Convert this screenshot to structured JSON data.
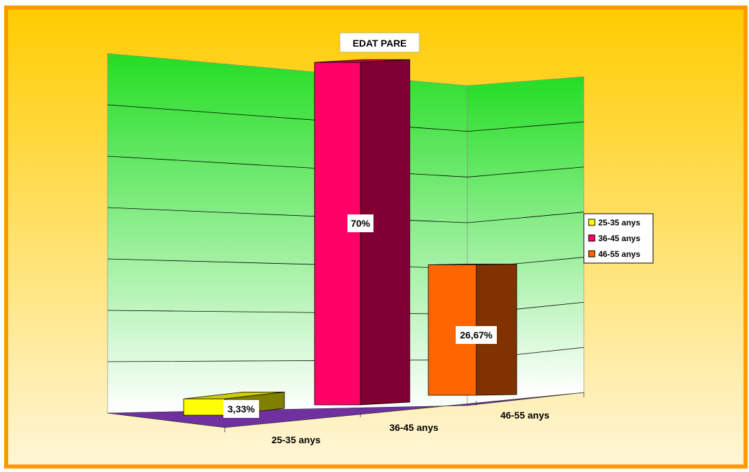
{
  "chart_data": {
    "type": "bar",
    "title": "EDAT PARE",
    "categories": [
      "25-35 anys",
      "36-45 anys",
      "46-55 anys"
    ],
    "values": [
      3.33,
      70,
      26.67
    ],
    "data_labels": [
      "3,33%",
      "70%",
      "26,67%"
    ],
    "ylim": [
      0,
      70
    ],
    "legend": {
      "placement": "right",
      "entries": [
        "25-35 anys",
        "36-45 anys",
        "46-55 anys"
      ]
    },
    "grid": true,
    "colors": {
      "front": [
        "#ffff00",
        "#ff0066",
        "#ff6600"
      ],
      "side": [
        "#808000",
        "#800033",
        "#803300"
      ],
      "top": [
        "#cccc00",
        "#cc0052",
        "#cc5200"
      ],
      "floor": "#7030a0",
      "wall_top": "#22dd22",
      "wall_bottom": "#ffffff",
      "background_top": "#ffcc00",
      "background_bottom": "#fff6d8",
      "frame": "#ff9900"
    }
  }
}
